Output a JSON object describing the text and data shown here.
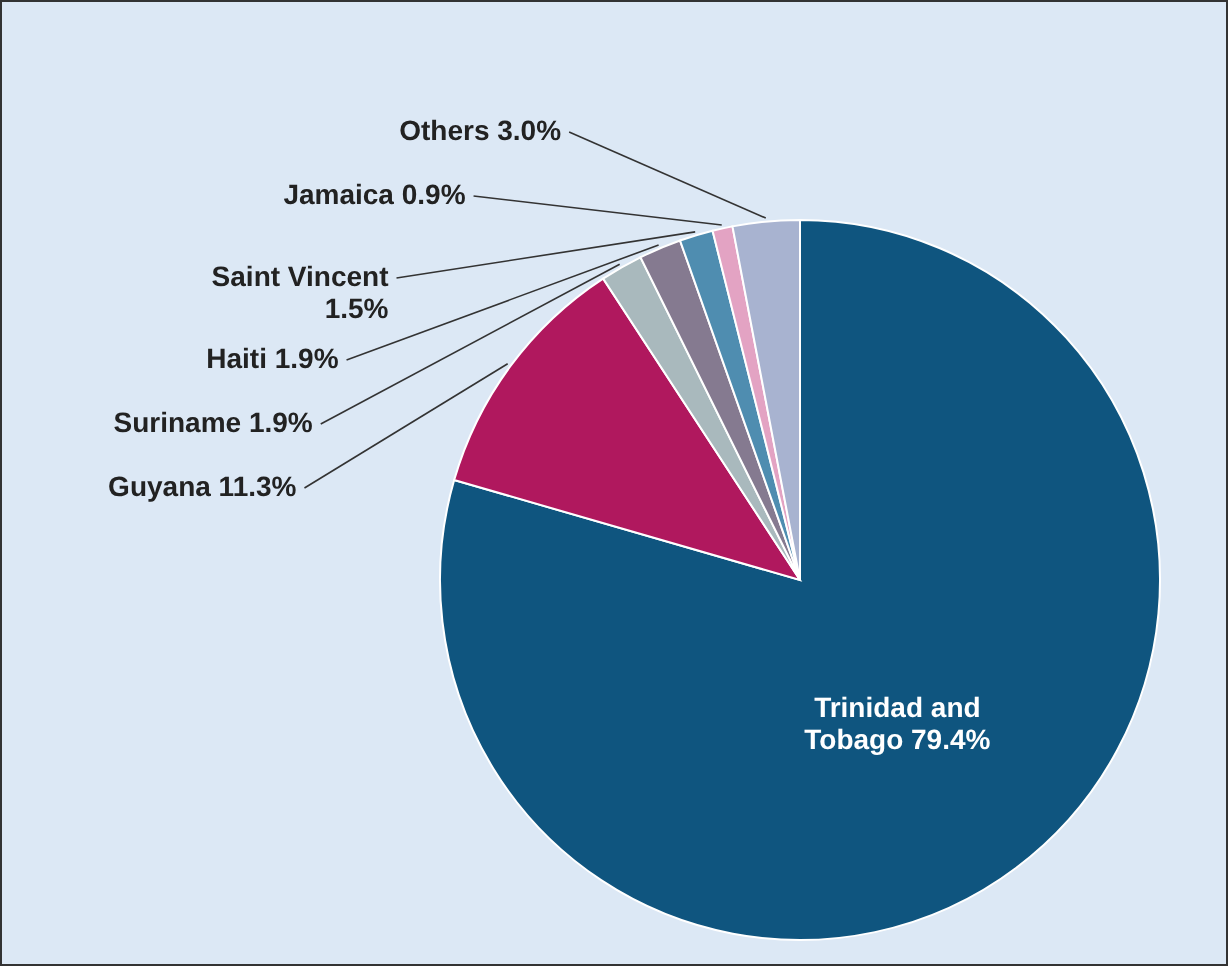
{
  "chart_data": {
    "type": "pie",
    "categories": [
      "Trinidad and Tobago",
      "Guyana",
      "Suriname",
      "Haiti",
      "Saint Vincent",
      "Jamaica",
      "Others"
    ],
    "values": [
      79.4,
      11.3,
      1.9,
      1.9,
      1.5,
      0.9,
      3.0
    ],
    "colors": [
      "#0f557f",
      "#b0185e",
      "#a9b9bd",
      "#857a90",
      "#4f8db0",
      "#e3a3c3",
      "#a8b3d0"
    ],
    "value_labels": [
      "79.4%",
      "11.3%",
      "1.9%",
      "1.9%",
      "1.5%",
      "0.9%",
      "3.0%"
    ],
    "legend": false
  }
}
